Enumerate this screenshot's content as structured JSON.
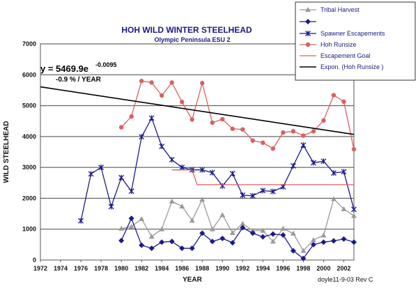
{
  "chart_data": {
    "type": "line",
    "title": "HOH WILD WINTER STEELHEAD",
    "subtitle": "Olympic Peninsula ESU 2",
    "xlabel": "YEAR",
    "ylabel": "WILD STEELHEAD",
    "xlim": [
      1972,
      2003
    ],
    "ylim": [
      0,
      7000
    ],
    "x_ticks": [
      "1972",
      "1974",
      "1976",
      "1978",
      "1980",
      "1982",
      "1984",
      "1986",
      "1988",
      "1990",
      "1992",
      "1994",
      "1996",
      "1998",
      "2000",
      "2002"
    ],
    "y_ticks": [
      "0",
      "1000",
      "2000",
      "3000",
      "4000",
      "5000",
      "6000",
      "7000"
    ],
    "grid": "horizontal",
    "legend_position": "top-right",
    "equation": "y = 5469.9e",
    "equation_exponent": "-0.0095",
    "equation_rate": "-0.9 % / YEAR",
    "footer_note": "doyle11-9-03 Rev C",
    "series": [
      {
        "name": "Tribal Harvest",
        "color": "#9a9a9a",
        "marker": "triangle",
        "x": [
          1980,
          1981,
          1982,
          1983,
          1984,
          1985,
          1986,
          1987,
          1988,
          1989,
          1990,
          1991,
          1992,
          1993,
          1994,
          1995,
          1996,
          1997,
          1998,
          1999,
          2000,
          2001,
          2002,
          2003
        ],
        "y": [
          1020,
          1080,
          1330,
          760,
          1000,
          1900,
          1740,
          1280,
          1960,
          1000,
          1460,
          880,
          1180,
          950,
          950,
          600,
          1020,
          860,
          300,
          650,
          800,
          1980,
          1650,
          1430
        ]
      },
      {
        "name": "",
        "color": "#1a1a8c",
        "marker": "diamond",
        "x": [
          1980,
          1981,
          1982,
          1983,
          1984,
          1985,
          1986,
          1987,
          1988,
          1989,
          1990,
          1991,
          1992,
          1993,
          1994,
          1995,
          1996,
          1997,
          1998,
          1999,
          2000,
          2001,
          2002,
          2003
        ],
        "y": [
          630,
          1350,
          480,
          380,
          580,
          600,
          380,
          380,
          870,
          600,
          700,
          560,
          1050,
          870,
          750,
          840,
          810,
          300,
          50,
          500,
          580,
          620,
          680,
          580
        ]
      },
      {
        "name": "Spawner Escapements",
        "color": "#1a1a8c",
        "marker": "x",
        "x": [
          1976,
          1977,
          1978,
          1979,
          1980,
          1981,
          1982,
          1983,
          1984,
          1985,
          1986,
          1987,
          1988,
          1989,
          1990,
          1991,
          1992,
          1993,
          1994,
          1995,
          1996,
          1997,
          1998,
          1999,
          2000,
          2001,
          2002,
          2003
        ],
        "y": [
          1270,
          2790,
          3000,
          1730,
          2670,
          2230,
          3990,
          4600,
          3680,
          3250,
          3000,
          2920,
          2920,
          2830,
          2400,
          2800,
          2100,
          2080,
          2250,
          2220,
          2370,
          3050,
          3720,
          3150,
          3200,
          2820,
          2860,
          1640
        ]
      },
      {
        "name": "Hoh Runsize",
        "color": "#d96060",
        "marker": "circle",
        "x": [
          1980,
          1981,
          1982,
          1983,
          1984,
          1985,
          1986,
          1987,
          1988,
          1989,
          1990,
          1991,
          1992,
          1993,
          1994,
          1995,
          1996,
          1997,
          1998,
          1999,
          2000,
          2001,
          2002,
          2003
        ],
        "y": [
          4300,
          4650,
          5800,
          5750,
          5330,
          5750,
          5120,
          4550,
          5730,
          4450,
          4560,
          4250,
          4230,
          3870,
          3800,
          3610,
          4130,
          4170,
          4030,
          4170,
          4520,
          5340,
          5130,
          3590
        ]
      },
      {
        "name": "Escapement Goal",
        "color": "#d96060",
        "marker": "none",
        "x": [
          1985,
          1987,
          1987.5,
          2003
        ],
        "y": [
          2920,
          2920,
          2440,
          2440
        ]
      },
      {
        "name": "Expon. (Hoh Runsize )",
        "color": "#000000",
        "marker": "none",
        "x": [
          1972,
          2003
        ],
        "y": [
          5610,
          4070
        ]
      }
    ]
  }
}
